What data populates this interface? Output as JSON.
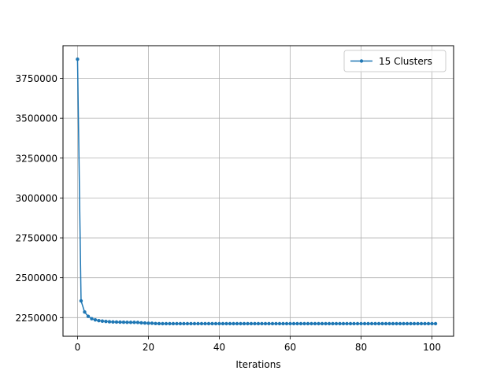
{
  "chart_data": {
    "type": "line",
    "title": "",
    "xlabel": "Iterations",
    "ylabel": "",
    "xlim": [
      -4.1,
      106.1
    ],
    "ylim": [
      2133000,
      3955000
    ],
    "x_ticks": [
      0,
      20,
      40,
      60,
      80,
      100
    ],
    "x_tick_labels": [
      "0",
      "20",
      "40",
      "60",
      "80",
      "100"
    ],
    "y_ticks": [
      2250000,
      2500000,
      2750000,
      3000000,
      3250000,
      3500000,
      3750000
    ],
    "y_tick_labels": [
      "2250000",
      "2500000",
      "2750000",
      "3000000",
      "3250000",
      "3500000",
      "3750000"
    ],
    "grid": true,
    "legend_position": "top-right",
    "series": [
      {
        "name": "15 Clusters",
        "color": "#1f77b4",
        "marker": "point",
        "x": [
          0,
          1,
          2,
          3,
          4,
          5,
          6,
          7,
          8,
          9,
          10,
          11,
          12,
          13,
          14,
          15,
          16,
          17,
          18,
          19,
          20,
          21,
          22,
          23,
          24,
          25,
          26,
          27,
          28,
          29,
          30,
          31,
          32,
          33,
          34,
          35,
          36,
          37,
          38,
          39,
          40,
          41,
          42,
          43,
          44,
          45,
          46,
          47,
          48,
          49,
          50,
          51,
          52,
          53,
          54,
          55,
          56,
          57,
          58,
          59,
          60,
          61,
          62,
          63,
          64,
          65,
          66,
          67,
          68,
          69,
          70,
          71,
          72,
          73,
          74,
          75,
          76,
          77,
          78,
          79,
          80,
          81,
          82,
          83,
          84,
          85,
          86,
          87,
          88,
          89,
          90,
          91,
          92,
          93,
          94,
          95,
          96,
          97,
          98,
          99,
          100,
          101
        ],
        "y": [
          3870000,
          2355000,
          2285000,
          2258000,
          2243000,
          2236000,
          2231000,
          2228000,
          2226000,
          2224000,
          2223000,
          2222000,
          2221500,
          2221000,
          2220500,
          2220000,
          2220000,
          2219500,
          2217000,
          2216000,
          2215000,
          2214500,
          2213000,
          2212500,
          2212000,
          2212000,
          2212000,
          2212000,
          2212000,
          2212000,
          2212000,
          2212000,
          2212000,
          2212000,
          2212000,
          2212000,
          2212000,
          2212000,
          2212000,
          2212000,
          2212000,
          2212000,
          2212000,
          2212000,
          2212000,
          2212000,
          2212000,
          2212000,
          2212000,
          2212000,
          2212000,
          2212000,
          2212000,
          2212000,
          2212000,
          2212000,
          2212000,
          2212000,
          2212000,
          2212000,
          2212000,
          2212000,
          2212000,
          2212000,
          2212000,
          2212000,
          2212000,
          2212000,
          2212000,
          2212000,
          2212000,
          2212000,
          2212000,
          2212000,
          2212000,
          2212000,
          2212000,
          2212000,
          2212000,
          2212000,
          2212000,
          2212000,
          2212000,
          2212000,
          2212000,
          2212000,
          2212000,
          2212000,
          2212000,
          2212000,
          2212000,
          2212000,
          2212000,
          2212000,
          2212000,
          2212000,
          2212000,
          2212000,
          2212000,
          2212000,
          2212000,
          2212000
        ]
      }
    ]
  }
}
